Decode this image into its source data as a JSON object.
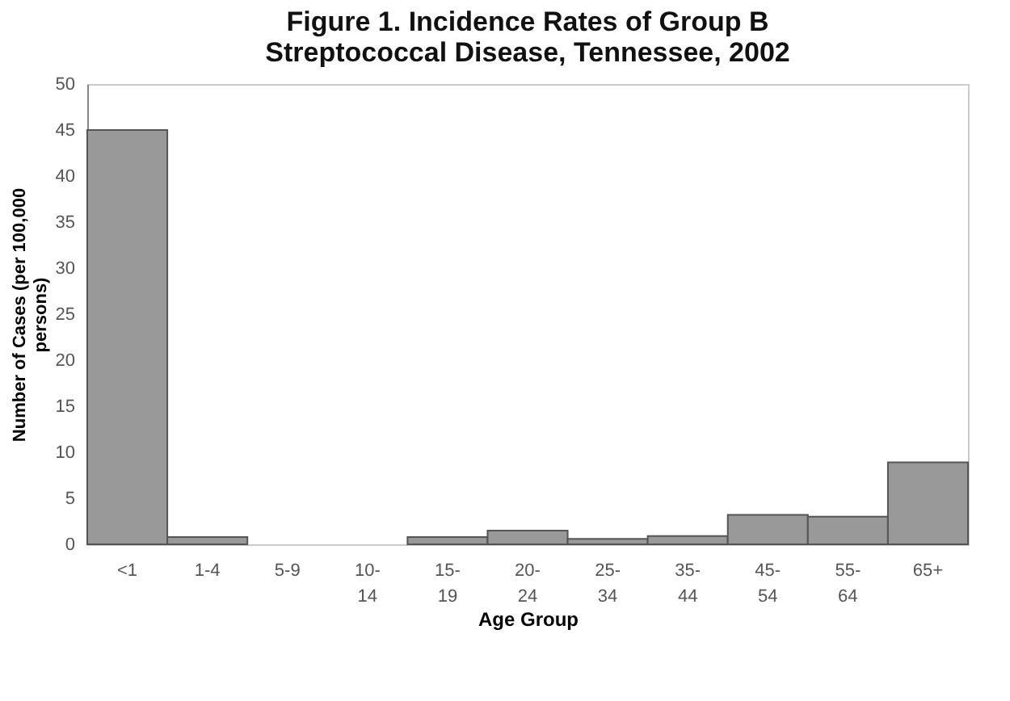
{
  "chart_data": {
    "type": "bar",
    "title": [
      "Figure 1. Incidence Rates of Group B",
      "Streptococcal Disease, Tennessee, 2002"
    ],
    "xlabel": "Age Group",
    "ylabel": [
      "Number of Cases (per 100,000",
      "persons)"
    ],
    "categories": [
      "<1",
      "1-4",
      "5-9",
      "10-14",
      "15-19",
      "20-24",
      "25-34",
      "35-44",
      "45-54",
      "55-64",
      "65+"
    ],
    "values": [
      45,
      0.8,
      0,
      0,
      0.8,
      1.5,
      0.6,
      0.9,
      3.2,
      3.0,
      8.9
    ],
    "color": "#999999",
    "ylim": [
      0,
      50
    ],
    "yticks": [
      0,
      5,
      10,
      15,
      20,
      25,
      30,
      35,
      40,
      45,
      50
    ],
    "grid": false
  }
}
